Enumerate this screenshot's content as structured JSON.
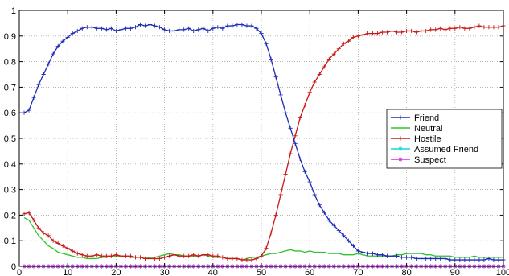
{
  "chart_data": {
    "type": "line",
    "xlim": [
      0,
      100
    ],
    "ylim": [
      0,
      1
    ],
    "x_ticks": [
      "0",
      "10",
      "20",
      "30",
      "40",
      "50",
      "60",
      "70",
      "80",
      "90",
      "100"
    ],
    "y_ticks": [
      "0",
      "0.1",
      "0.2",
      "0.3",
      "0.4",
      "0.5",
      "0.6",
      "0.7",
      "0.8",
      "0.9",
      "1"
    ],
    "grid": true,
    "legend_position": "right",
    "series": [
      {
        "name": "Friend",
        "color": "#1f2bb5",
        "marker": "plus",
        "x": [
          1,
          2,
          3,
          4,
          5,
          6,
          7,
          8,
          9,
          10,
          11,
          12,
          13,
          14,
          15,
          16,
          17,
          18,
          19,
          20,
          21,
          22,
          23,
          24,
          25,
          26,
          27,
          28,
          29,
          30,
          31,
          32,
          33,
          34,
          35,
          36,
          37,
          38,
          39,
          40,
          41,
          42,
          43,
          44,
          45,
          46,
          47,
          48,
          49,
          50,
          51,
          52,
          53,
          54,
          55,
          56,
          57,
          58,
          59,
          60,
          61,
          62,
          63,
          64,
          65,
          66,
          67,
          68,
          69,
          70,
          71,
          72,
          73,
          74,
          75,
          76,
          77,
          78,
          79,
          80,
          81,
          82,
          83,
          84,
          85,
          86,
          87,
          88,
          89,
          90,
          91,
          92,
          93,
          94,
          95,
          96,
          97,
          98,
          99,
          100
        ],
        "y": [
          0.6,
          0.61,
          0.66,
          0.71,
          0.75,
          0.79,
          0.83,
          0.86,
          0.88,
          0.895,
          0.91,
          0.92,
          0.93,
          0.935,
          0.935,
          0.93,
          0.93,
          0.925,
          0.93,
          0.92,
          0.925,
          0.93,
          0.93,
          0.935,
          0.945,
          0.94,
          0.945,
          0.94,
          0.935,
          0.925,
          0.92,
          0.92,
          0.925,
          0.925,
          0.93,
          0.92,
          0.925,
          0.93,
          0.92,
          0.93,
          0.935,
          0.93,
          0.94,
          0.94,
          0.945,
          0.945,
          0.94,
          0.94,
          0.93,
          0.91,
          0.87,
          0.81,
          0.74,
          0.67,
          0.6,
          0.54,
          0.48,
          0.42,
          0.37,
          0.33,
          0.28,
          0.24,
          0.21,
          0.18,
          0.16,
          0.14,
          0.12,
          0.1,
          0.08,
          0.06,
          0.055,
          0.05,
          0.05,
          0.045,
          0.045,
          0.04,
          0.04,
          0.04,
          0.035,
          0.035,
          0.035,
          0.03,
          0.03,
          0.03,
          0.03,
          0.03,
          0.03,
          0.03,
          0.025,
          0.025,
          0.025,
          0.025,
          0.025,
          0.025,
          0.025,
          0.025,
          0.03,
          0.025,
          0.025,
          0.025
        ]
      },
      {
        "name": "Neutral",
        "color": "#2cc32c",
        "marker": "none",
        "x": [
          1,
          2,
          3,
          4,
          5,
          6,
          7,
          8,
          9,
          10,
          11,
          12,
          13,
          14,
          15,
          16,
          17,
          18,
          19,
          20,
          21,
          22,
          23,
          24,
          25,
          26,
          27,
          28,
          29,
          30,
          31,
          32,
          33,
          34,
          35,
          36,
          37,
          38,
          39,
          40,
          41,
          42,
          43,
          44,
          45,
          46,
          47,
          48,
          49,
          50,
          51,
          52,
          53,
          54,
          55,
          56,
          57,
          58,
          59,
          60,
          61,
          62,
          63,
          64,
          65,
          66,
          67,
          68,
          69,
          70,
          71,
          72,
          73,
          74,
          75,
          76,
          77,
          78,
          79,
          80,
          81,
          82,
          83,
          84,
          85,
          86,
          87,
          88,
          89,
          90,
          91,
          92,
          93,
          94,
          95,
          96,
          97,
          98,
          99,
          100
        ],
        "y": [
          0.19,
          0.18,
          0.15,
          0.12,
          0.1,
          0.08,
          0.07,
          0.055,
          0.05,
          0.045,
          0.04,
          0.035,
          0.035,
          0.03,
          0.03,
          0.03,
          0.035,
          0.035,
          0.04,
          0.04,
          0.04,
          0.04,
          0.035,
          0.035,
          0.035,
          0.03,
          0.035,
          0.035,
          0.04,
          0.045,
          0.05,
          0.045,
          0.045,
          0.04,
          0.04,
          0.04,
          0.04,
          0.045,
          0.04,
          0.035,
          0.035,
          0.035,
          0.03,
          0.03,
          0.03,
          0.025,
          0.03,
          0.035,
          0.035,
          0.04,
          0.045,
          0.05,
          0.05,
          0.055,
          0.06,
          0.065,
          0.06,
          0.06,
          0.055,
          0.06,
          0.055,
          0.055,
          0.055,
          0.05,
          0.05,
          0.05,
          0.045,
          0.045,
          0.045,
          0.05,
          0.045,
          0.04,
          0.04,
          0.04,
          0.04,
          0.04,
          0.04,
          0.045,
          0.045,
          0.05,
          0.05,
          0.05,
          0.05,
          0.045,
          0.045,
          0.04,
          0.04,
          0.04,
          0.04,
          0.035,
          0.035,
          0.035,
          0.035,
          0.04,
          0.035,
          0.035,
          0.035,
          0.035,
          0.035,
          0.035
        ]
      },
      {
        "name": "Hostile",
        "color": "#c81818",
        "marker": "plus",
        "x": [
          1,
          2,
          3,
          4,
          5,
          6,
          7,
          8,
          9,
          10,
          11,
          12,
          13,
          14,
          15,
          16,
          17,
          18,
          19,
          20,
          21,
          22,
          23,
          24,
          25,
          26,
          27,
          28,
          29,
          30,
          31,
          32,
          33,
          34,
          35,
          36,
          37,
          38,
          39,
          40,
          41,
          42,
          43,
          44,
          45,
          46,
          47,
          48,
          49,
          50,
          51,
          52,
          53,
          54,
          55,
          56,
          57,
          58,
          59,
          60,
          61,
          62,
          63,
          64,
          65,
          66,
          67,
          68,
          69,
          70,
          71,
          72,
          73,
          74,
          75,
          76,
          77,
          78,
          79,
          80,
          81,
          82,
          83,
          84,
          85,
          86,
          87,
          88,
          89,
          90,
          91,
          92,
          93,
          94,
          95,
          96,
          97,
          98,
          99,
          100
        ],
        "y": [
          0.205,
          0.21,
          0.18,
          0.15,
          0.13,
          0.12,
          0.1,
          0.09,
          0.08,
          0.07,
          0.06,
          0.05,
          0.045,
          0.04,
          0.04,
          0.045,
          0.04,
          0.04,
          0.04,
          0.045,
          0.04,
          0.04,
          0.04,
          0.035,
          0.035,
          0.03,
          0.03,
          0.03,
          0.03,
          0.035,
          0.04,
          0.045,
          0.04,
          0.04,
          0.04,
          0.045,
          0.04,
          0.045,
          0.045,
          0.04,
          0.04,
          0.035,
          0.03,
          0.03,
          0.03,
          0.025,
          0.025,
          0.025,
          0.03,
          0.04,
          0.07,
          0.13,
          0.2,
          0.28,
          0.36,
          0.44,
          0.51,
          0.58,
          0.63,
          0.68,
          0.72,
          0.75,
          0.78,
          0.81,
          0.83,
          0.85,
          0.87,
          0.88,
          0.895,
          0.9,
          0.905,
          0.91,
          0.91,
          0.91,
          0.915,
          0.915,
          0.92,
          0.915,
          0.915,
          0.92,
          0.92,
          0.915,
          0.92,
          0.92,
          0.925,
          0.925,
          0.93,
          0.925,
          0.93,
          0.93,
          0.935,
          0.93,
          0.93,
          0.935,
          0.94,
          0.935,
          0.935,
          0.935,
          0.935,
          0.94
        ]
      },
      {
        "name": "Assumed Friend",
        "color": "#18d6d6",
        "marker": "star",
        "x": [
          1,
          2,
          3,
          4,
          5,
          6,
          7,
          8,
          9,
          10,
          11,
          12,
          13,
          14,
          15,
          16,
          17,
          18,
          19,
          20,
          21,
          22,
          23,
          24,
          25,
          26,
          27,
          28,
          29,
          30,
          31,
          32,
          33,
          34,
          35,
          36,
          37,
          38,
          39,
          40,
          41,
          42,
          43,
          44,
          45,
          46,
          47,
          48,
          49,
          50,
          51,
          52,
          53,
          54,
          55,
          56,
          57,
          58,
          59,
          60,
          61,
          62,
          63,
          64,
          65,
          66,
          67,
          68,
          69,
          70,
          71,
          72,
          73,
          74,
          75,
          76,
          77,
          78,
          79,
          80,
          81,
          82,
          83,
          84,
          85,
          86,
          87,
          88,
          89,
          90,
          91,
          92,
          93,
          94,
          95,
          96,
          97,
          98,
          99,
          100
        ],
        "y": [
          0,
          0,
          0,
          0,
          0,
          0,
          0,
          0,
          0,
          0,
          0,
          0,
          0,
          0,
          0,
          0,
          0,
          0,
          0,
          0,
          0,
          0,
          0,
          0,
          0,
          0,
          0,
          0,
          0,
          0,
          0,
          0,
          0,
          0,
          0,
          0,
          0,
          0,
          0,
          0,
          0,
          0,
          0,
          0,
          0,
          0,
          0,
          0,
          0,
          0,
          0,
          0,
          0,
          0,
          0,
          0,
          0,
          0,
          0,
          0,
          0,
          0,
          0,
          0,
          0,
          0,
          0,
          0,
          0,
          0,
          0,
          0,
          0,
          0,
          0,
          0,
          0,
          0,
          0,
          0,
          0,
          0,
          0,
          0,
          0,
          0,
          0,
          0,
          0,
          0,
          0,
          0,
          0,
          0,
          0,
          0,
          0,
          0,
          0,
          0
        ]
      },
      {
        "name": "Suspect",
        "color": "#d42ed4",
        "marker": "star",
        "x": [
          1,
          2,
          3,
          4,
          5,
          6,
          7,
          8,
          9,
          10,
          11,
          12,
          13,
          14,
          15,
          16,
          17,
          18,
          19,
          20,
          21,
          22,
          23,
          24,
          25,
          26,
          27,
          28,
          29,
          30,
          31,
          32,
          33,
          34,
          35,
          36,
          37,
          38,
          39,
          40,
          41,
          42,
          43,
          44,
          45,
          46,
          47,
          48,
          49,
          50,
          51,
          52,
          53,
          54,
          55,
          56,
          57,
          58,
          59,
          60,
          61,
          62,
          63,
          64,
          65,
          66,
          67,
          68,
          69,
          70,
          71,
          72,
          73,
          74,
          75,
          76,
          77,
          78,
          79,
          80,
          81,
          82,
          83,
          84,
          85,
          86,
          87,
          88,
          89,
          90,
          91,
          92,
          93,
          94,
          95,
          96,
          97,
          98,
          99,
          100
        ],
        "y": [
          0,
          0,
          0,
          0,
          0,
          0,
          0,
          0,
          0,
          0,
          0,
          0,
          0,
          0,
          0,
          0,
          0,
          0,
          0,
          0,
          0,
          0,
          0,
          0,
          0,
          0,
          0,
          0,
          0,
          0,
          0,
          0,
          0,
          0,
          0,
          0,
          0,
          0,
          0,
          0,
          0,
          0,
          0,
          0,
          0,
          0,
          0,
          0,
          0,
          0,
          0,
          0,
          0,
          0,
          0,
          0,
          0,
          0,
          0,
          0,
          0,
          0,
          0,
          0,
          0,
          0,
          0,
          0,
          0,
          0,
          0,
          0,
          0,
          0,
          0,
          0,
          0,
          0,
          0,
          0,
          0,
          0,
          0,
          0,
          0,
          0,
          0,
          0,
          0,
          0,
          0,
          0,
          0,
          0,
          0,
          0,
          0,
          0,
          0,
          0
        ]
      }
    ]
  }
}
